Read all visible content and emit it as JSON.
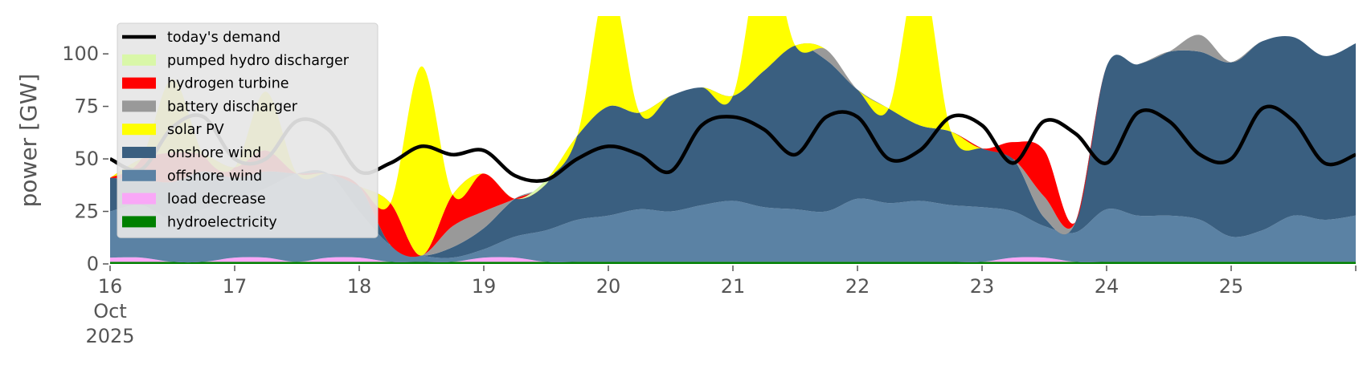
{
  "chart_data": {
    "type": "area",
    "ylabel": "power [GW]",
    "ylim": [
      0,
      118
    ],
    "yticks": [
      0,
      25,
      50,
      75,
      100
    ],
    "xlim": [
      "2025-10-16T00:00",
      "2025-10-26T00:00"
    ],
    "x_tick_labels": [
      {
        "date": "2025-10-16",
        "lines": [
          "16",
          "Oct",
          "2025"
        ]
      },
      {
        "date": "2025-10-17",
        "lines": [
          "17"
        ]
      },
      {
        "date": "2025-10-18",
        "lines": [
          "18"
        ]
      },
      {
        "date": "2025-10-19",
        "lines": [
          "19"
        ]
      },
      {
        "date": "2025-10-20",
        "lines": [
          "20"
        ]
      },
      {
        "date": "2025-10-21",
        "lines": [
          "21"
        ]
      },
      {
        "date": "2025-10-22",
        "lines": [
          "22"
        ]
      },
      {
        "date": "2025-10-23",
        "lines": [
          "23"
        ]
      },
      {
        "date": "2025-10-24",
        "lines": [
          "24"
        ]
      },
      {
        "date": "2025-10-25",
        "lines": [
          "25"
        ]
      }
    ],
    "x_hours": [
      0,
      6,
      12,
      18,
      24,
      30,
      36,
      42,
      48,
      54,
      60,
      66,
      72,
      78,
      84,
      90,
      96,
      102,
      108,
      114,
      120,
      126,
      132,
      138,
      144,
      150,
      156,
      162,
      168,
      174,
      180,
      186,
      192,
      198,
      204,
      210,
      216,
      222,
      228,
      234,
      240
    ],
    "grid": false,
    "legend_position": "upper-left",
    "stacked_series": [
      {
        "name": "hydroelectricity",
        "color": "#008000",
        "values": [
          1,
          1,
          1,
          1,
          1,
          1,
          1,
          1,
          1,
          1,
          1,
          1,
          1,
          1,
          1,
          1,
          1,
          1,
          1,
          1,
          1,
          1,
          1,
          1,
          1,
          1,
          1,
          1,
          1,
          1,
          1,
          1,
          1,
          1,
          1,
          1,
          1,
          1,
          1,
          1,
          1
        ]
      },
      {
        "name": "load decrease",
        "color": "#f9a7f7",
        "values": [
          2,
          2,
          0,
          0,
          2,
          2,
          0,
          2,
          2,
          0,
          0,
          0,
          2,
          2,
          0,
          0,
          0,
          0,
          0,
          0,
          0,
          0,
          0,
          0,
          0,
          0,
          0,
          0,
          0,
          2,
          2,
          0,
          0,
          0,
          0,
          0,
          0,
          0,
          0,
          0,
          0
        ]
      },
      {
        "name": "offshore wind",
        "color": "#5b82a4",
        "values": [
          22,
          25,
          20,
          25,
          28,
          33,
          42,
          40,
          22,
          8,
          3,
          2,
          4,
          10,
          15,
          20,
          22,
          25,
          24,
          27,
          29,
          26,
          25,
          24,
          30,
          28,
          29,
          27,
          26,
          22,
          15,
          14,
          25,
          22,
          22,
          20,
          12,
          15,
          22,
          20,
          22
        ]
      },
      {
        "name": "onshore wind",
        "color": "#3a5f80",
        "values": [
          16,
          12,
          18,
          18,
          10,
          8,
          0,
          0,
          12,
          0,
          0,
          5,
          10,
          18,
          22,
          40,
          52,
          46,
          55,
          56,
          50,
          65,
          78,
          72,
          52,
          45,
          36,
          35,
          28,
          25,
          4,
          5,
          68,
          72,
          78,
          80,
          83,
          90,
          85,
          78,
          82
        ]
      },
      {
        "name": "battery discharger",
        "color": "#999999",
        "values": [
          0,
          0,
          0,
          0,
          0,
          0,
          0,
          0,
          0,
          0,
          0,
          10,
          8,
          0,
          0,
          0,
          0,
          0,
          0,
          0,
          0,
          0,
          0,
          5,
          0,
          0,
          0,
          0,
          0,
          0,
          10,
          0,
          0,
          0,
          0,
          8,
          0,
          0,
          0,
          0,
          0
        ]
      },
      {
        "name": "hydrogen turbine",
        "color": "#ff0000",
        "values": [
          0,
          10,
          14,
          8,
          5,
          10,
          0,
          0,
          0,
          20,
          0,
          15,
          18,
          0,
          0,
          0,
          0,
          0,
          0,
          0,
          0,
          0,
          0,
          0,
          0,
          0,
          0,
          0,
          0,
          8,
          22,
          0,
          0,
          0,
          0,
          0,
          0,
          0,
          0,
          0,
          0
        ]
      },
      {
        "name": "pumped hydro discharger",
        "color": "#d9f7a8",
        "values": [
          0,
          0,
          0,
          0,
          0,
          0,
          0,
          0,
          0,
          0,
          0,
          0,
          0,
          0,
          2,
          0,
          0,
          0,
          0,
          0,
          0,
          0,
          0,
          0,
          0,
          0,
          0,
          0,
          0,
          0,
          0,
          0,
          0,
          0,
          0,
          0,
          0,
          0,
          0,
          0,
          0
        ]
      },
      {
        "name": "solar PV",
        "color": "#ffff00",
        "values": [
          0,
          0,
          35,
          0,
          0,
          28,
          0,
          0,
          0,
          0,
          90,
          0,
          0,
          0,
          0,
          0,
          60,
          0,
          0,
          0,
          0,
          60,
          0,
          0,
          0,
          0,
          75,
          0,
          0,
          0,
          0,
          0,
          0,
          0,
          0,
          0,
          0,
          0,
          0,
          0,
          0
        ]
      }
    ],
    "demand_series": {
      "name": "today's demand",
      "color": "#000000",
      "values": [
        50,
        45,
        65,
        70,
        50,
        50,
        68,
        64,
        44,
        48,
        56,
        52,
        54,
        42,
        40,
        50,
        56,
        52,
        44,
        66,
        70,
        64,
        52,
        70,
        70,
        50,
        54,
        70,
        66,
        48,
        68,
        62,
        48,
        72,
        68,
        52,
        50,
        74,
        68,
        48,
        52
      ]
    },
    "legend": [
      {
        "label": "today's demand",
        "color": "#000000",
        "kind": "line"
      },
      {
        "label": "pumped hydro discharger",
        "color": "#d9f7a8",
        "kind": "patch"
      },
      {
        "label": "hydrogen turbine",
        "color": "#ff0000",
        "kind": "patch"
      },
      {
        "label": "battery discharger",
        "color": "#999999",
        "kind": "patch"
      },
      {
        "label": "solar PV",
        "color": "#ffff00",
        "kind": "patch"
      },
      {
        "label": "onshore wind",
        "color": "#3a5f80",
        "kind": "patch"
      },
      {
        "label": "offshore wind",
        "color": "#5b82a4",
        "kind": "patch"
      },
      {
        "label": "load decrease",
        "color": "#f9a7f7",
        "kind": "patch"
      },
      {
        "label": "hydroelectricity",
        "color": "#008000",
        "kind": "patch"
      }
    ]
  }
}
